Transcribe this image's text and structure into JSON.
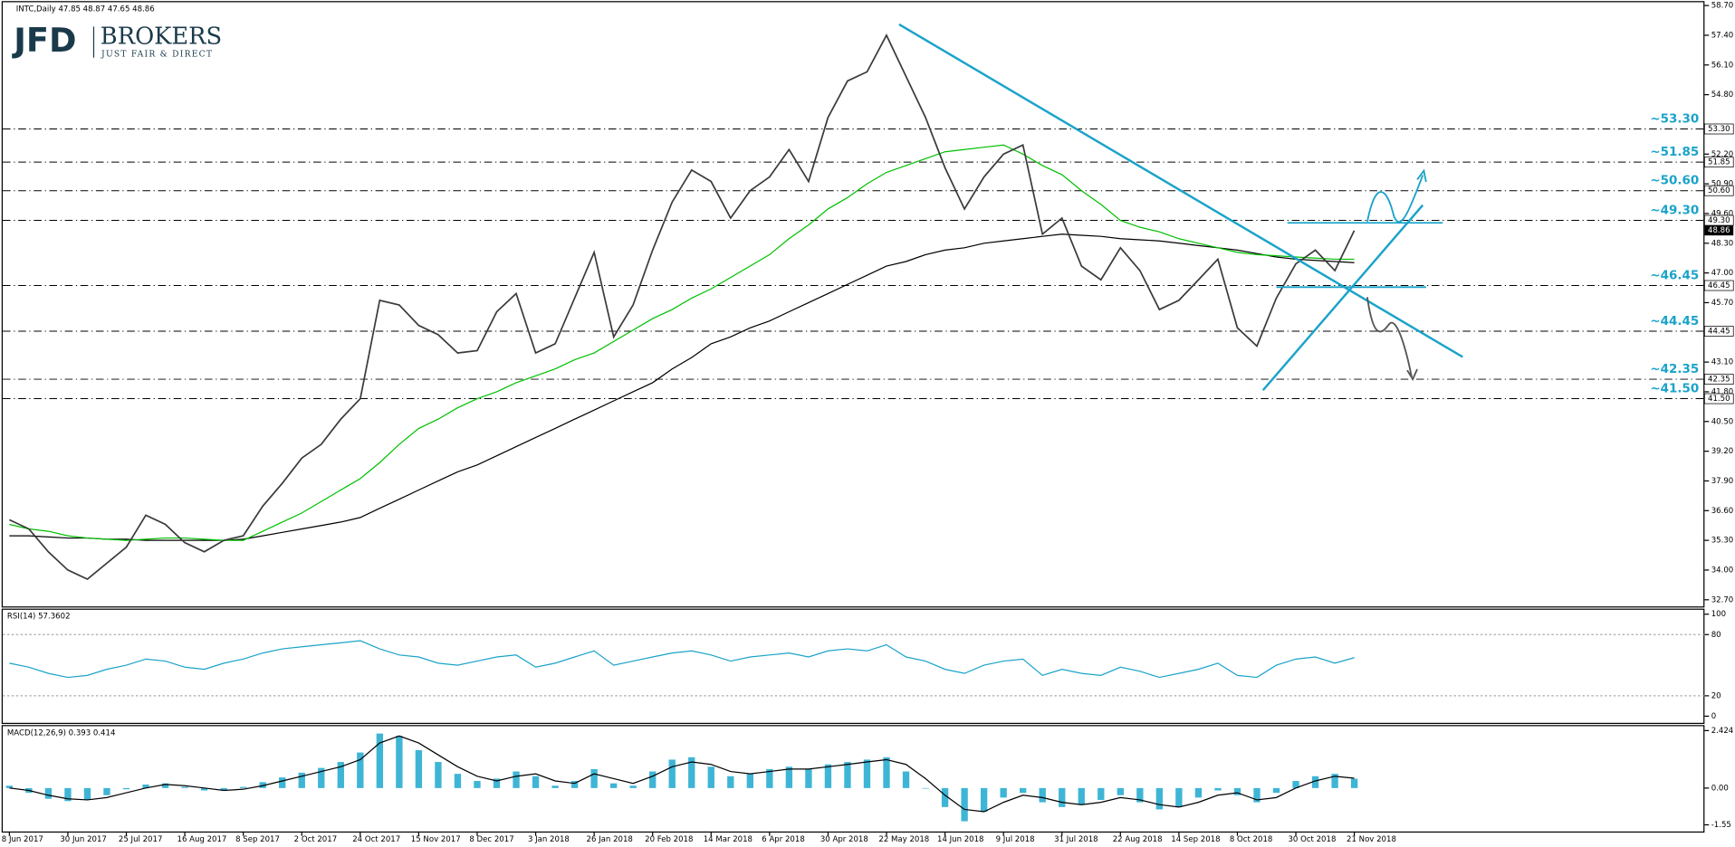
{
  "logo": {
    "name": "JFD",
    "brand": "BROKERS",
    "tagline": "JUST FAIR & DIRECT"
  },
  "chart_data": [
    {
      "type": "line",
      "title": "INTC,Daily  47.85 48.87 47.65 48.86",
      "ylim": [
        32.7,
        58.7
      ],
      "yticks": [
        {
          "value": 58.7,
          "label": "58.70"
        },
        {
          "value": 57.4,
          "label": "57.40"
        },
        {
          "value": 56.1,
          "label": "56.10"
        },
        {
          "value": 54.8,
          "label": "54.80"
        },
        {
          "value": 52.2,
          "label": "52.20"
        },
        {
          "value": 50.9,
          "label": "50.90"
        },
        {
          "value": 49.6,
          "label": "49.60"
        },
        {
          "value": 48.3,
          "label": "48.30"
        },
        {
          "value": 47,
          "label": "47.00"
        },
        {
          "value": 45.7,
          "label": "45.70"
        },
        {
          "value": 44.4,
          "label": "44.40"
        },
        {
          "value": 43.1,
          "label": "43.10"
        },
        {
          "value": 41.8,
          "label": "41.80"
        },
        {
          "value": 40.5,
          "label": "40.50"
        },
        {
          "value": 39.2,
          "label": "39.20"
        },
        {
          "value": 37.9,
          "label": "37.90"
        },
        {
          "value": 36.6,
          "label": "36.60"
        },
        {
          "value": 35.3,
          "label": "35.30"
        },
        {
          "value": 34,
          "label": "34.00"
        },
        {
          "value": 32.7,
          "label": "32.70"
        }
      ],
      "levels": [
        {
          "value": 53.3,
          "label": "~53.30",
          "tag": "53.30"
        },
        {
          "value": 51.85,
          "label": "~51.85",
          "tag": "51.85"
        },
        {
          "value": 50.6,
          "label": "~50.60",
          "tag": "50.60"
        },
        {
          "value": 49.3,
          "label": "~49.30",
          "tag": "49.30"
        },
        {
          "value": 46.45,
          "label": "~46.45",
          "tag": "46.45"
        },
        {
          "value": 44.45,
          "label": "~44.45",
          "tag": "44.45"
        },
        {
          "value": 42.35,
          "label": "~42.35",
          "tag": "42.35"
        },
        {
          "value": 41.5,
          "label": "~41.50",
          "tag": "41.50"
        }
      ],
      "current": {
        "value": 48.86,
        "label": "48.86"
      },
      "series": [
        {
          "color": "#000000",
          "values": [
            35.5,
            35.5,
            35.45,
            35.4,
            35.4,
            35.35,
            35.35,
            35.3,
            35.3,
            35.3,
            35.3,
            35.3,
            35.35,
            35.5,
            35.65,
            35.8,
            35.95,
            36.1,
            36.3,
            36.7,
            37.1,
            37.5,
            37.9,
            38.3,
            38.6,
            39.0,
            39.4,
            39.8,
            40.2,
            40.6,
            41.0,
            41.4,
            41.8,
            42.2,
            42.8,
            43.3,
            43.9,
            44.2,
            44.6,
            44.9,
            45.3,
            45.7,
            46.1,
            46.5,
            46.9,
            47.3,
            47.5,
            47.8,
            48.0,
            48.1,
            48.3,
            48.4,
            48.5,
            48.6,
            48.7,
            48.65,
            48.6,
            48.5,
            48.45,
            48.4,
            48.3,
            48.2,
            48.1,
            48.0,
            47.85,
            47.7,
            47.6,
            47.55,
            47.5,
            47.45
          ]
        },
        {
          "color": "#00c000",
          "values": [
            36.0,
            35.8,
            35.7,
            35.5,
            35.4,
            35.35,
            35.3,
            35.35,
            35.4,
            35.4,
            35.35,
            35.3,
            35.3,
            35.7,
            36.1,
            36.5,
            37.0,
            37.5,
            38.0,
            38.7,
            39.5,
            40.2,
            40.6,
            41.1,
            41.5,
            41.8,
            42.2,
            42.5,
            42.8,
            43.2,
            43.5,
            44.0,
            44.5,
            45.0,
            45.4,
            45.9,
            46.3,
            46.8,
            47.3,
            47.8,
            48.5,
            49.1,
            49.8,
            50.3,
            50.9,
            51.4,
            51.7,
            52.0,
            52.3,
            52.4,
            52.5,
            52.6,
            52.2,
            51.7,
            51.3,
            50.6,
            50.0,
            49.3,
            49.0,
            48.8,
            48.5,
            48.3,
            48.1,
            47.9,
            47.8,
            47.75,
            47.7,
            47.65,
            47.6,
            47.6
          ]
        },
        {
          "color": "#3a3a3a",
          "values": [
            36.2,
            35.8,
            34.8,
            34.0,
            33.6,
            34.3,
            35.0,
            36.4,
            36.0,
            35.2,
            34.8,
            35.3,
            35.5,
            36.8,
            37.8,
            38.9,
            39.5,
            40.6,
            41.5,
            45.8,
            45.6,
            44.7,
            44.3,
            43.5,
            43.6,
            45.3,
            46.1,
            43.5,
            43.9,
            45.9,
            47.9,
            44.2,
            45.6,
            48.0,
            50.1,
            51.5,
            51.0,
            49.4,
            50.6,
            51.2,
            52.4,
            51.0,
            53.8,
            55.4,
            55.8,
            57.4,
            55.6,
            53.8,
            51.6,
            49.8,
            51.2,
            52.2,
            52.6,
            48.7,
            49.4,
            47.3,
            46.7,
            48.1,
            47.1,
            45.4,
            45.8,
            46.7,
            47.6,
            44.6,
            43.8,
            45.9,
            47.4,
            48.0,
            47.1,
            48.86
          ]
        }
      ]
    },
    {
      "type": "line",
      "title": "RSI(14) 57.3602",
      "ylim": [
        0,
        100
      ],
      "yticks": [
        100,
        80,
        20,
        0
      ],
      "series": [
        {
          "color": "#1aa3c9",
          "values": [
            52,
            48,
            42,
            38,
            40,
            46,
            50,
            56,
            54,
            48,
            46,
            52,
            56,
            62,
            66,
            68,
            70,
            72,
            74,
            66,
            60,
            58,
            52,
            50,
            54,
            58,
            60,
            48,
            52,
            58,
            64,
            50,
            54,
            58,
            62,
            64,
            60,
            54,
            58,
            60,
            62,
            58,
            64,
            66,
            64,
            70,
            58,
            54,
            46,
            42,
            50,
            54,
            56,
            40,
            46,
            42,
            40,
            48,
            44,
            38,
            42,
            46,
            52,
            40,
            38,
            50,
            56,
            58,
            52,
            57.36
          ]
        }
      ]
    },
    {
      "type": "bar",
      "title": "MACD(12,26,9) 0.393 0.414",
      "ylim": [
        -1.55,
        2.424
      ],
      "yticks": [
        2.424,
        {
          "value": 0,
          "label": "0.00"
        },
        -1.55
      ],
      "categories": [
        "8 Jun 2017",
        null,
        null,
        "30 Jun 2017",
        null,
        null,
        "25 Jul 2017",
        null,
        null,
        "16 Aug 2017",
        null,
        null,
        "8 Sep 2017",
        null,
        null,
        "2 Oct 2017",
        null,
        null,
        "24 Oct 2017",
        null,
        null,
        "15 Nov 2017",
        null,
        null,
        "8 Dec 2017",
        null,
        null,
        "3 Jan 2018",
        null,
        null,
        "26 Jan 2018",
        null,
        null,
        "20 Feb 2018",
        null,
        null,
        "14 Mar 2018",
        null,
        null,
        "6 Apr 2018",
        null,
        null,
        "30 Apr 2018",
        null,
        null,
        "22 May 2018",
        null,
        null,
        "14 Jun 2018",
        null,
        null,
        "9 Jul 2018",
        null,
        null,
        "31 Jul 2018",
        null,
        null,
        "22 Aug 2018",
        null,
        null,
        "14 Sep 2018",
        null,
        null,
        "8 Oct 2018",
        null,
        null,
        "30 Oct 2018",
        null,
        null,
        "21 Nov 2018"
      ],
      "series": [
        {
          "style": "histogram",
          "color": "#3fb5d6",
          "values": [
            0.1,
            -0.2,
            -0.45,
            -0.55,
            -0.5,
            -0.3,
            -0.05,
            0.15,
            0.2,
            0.05,
            -0.1,
            -0.1,
            0.05,
            0.25,
            0.45,
            0.65,
            0.85,
            1.1,
            1.5,
            2.3,
            2.2,
            1.6,
            1.1,
            0.6,
            0.3,
            0.4,
            0.7,
            0.5,
            0.1,
            0.3,
            0.8,
            0.2,
            0.1,
            0.7,
            1.2,
            1.3,
            0.9,
            0.5,
            0.6,
            0.8,
            0.9,
            0.8,
            1.0,
            1.1,
            1.2,
            1.3,
            0.7,
            0.0,
            -0.8,
            -1.4,
            -1.0,
            -0.4,
            -0.2,
            -0.6,
            -0.8,
            -0.7,
            -0.5,
            -0.3,
            -0.6,
            -0.9,
            -0.8,
            -0.4,
            -0.1,
            -0.3,
            -0.6,
            -0.2,
            0.3,
            0.5,
            0.6,
            0.393
          ]
        },
        {
          "style": "line",
          "color": "#000000",
          "values": [
            0.0,
            -0.1,
            -0.3,
            -0.45,
            -0.5,
            -0.4,
            -0.2,
            0.0,
            0.15,
            0.1,
            0.0,
            -0.1,
            -0.05,
            0.1,
            0.3,
            0.5,
            0.7,
            0.9,
            1.2,
            1.9,
            2.2,
            1.9,
            1.4,
            0.9,
            0.5,
            0.3,
            0.5,
            0.6,
            0.3,
            0.2,
            0.6,
            0.4,
            0.2,
            0.5,
            0.9,
            1.1,
            1.0,
            0.7,
            0.6,
            0.7,
            0.8,
            0.8,
            0.9,
            1.0,
            1.1,
            1.2,
            1.0,
            0.4,
            -0.3,
            -0.9,
            -1.0,
            -0.6,
            -0.3,
            -0.4,
            -0.6,
            -0.7,
            -0.6,
            -0.4,
            -0.5,
            -0.7,
            -0.8,
            -0.6,
            -0.3,
            -0.2,
            -0.5,
            -0.4,
            0.0,
            0.3,
            0.5,
            0.414
          ]
        }
      ]
    }
  ]
}
